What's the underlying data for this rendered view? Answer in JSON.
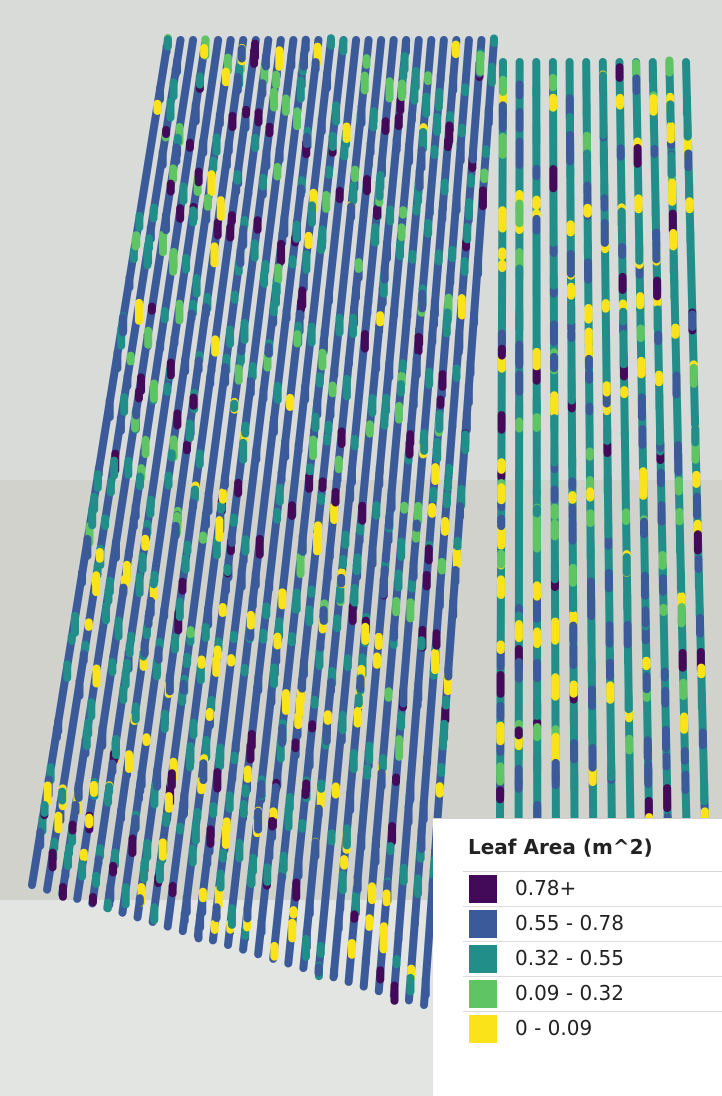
{
  "legend": {
    "title": "Leaf Area (m^2)",
    "classes": [
      {
        "label": "0.78+",
        "color": "#440a5a"
      },
      {
        "label": "0.55 - 0.78",
        "color": "#3a5a9a"
      },
      {
        "label": "0.32 - 0.55",
        "color": "#218e8a"
      },
      {
        "label": "0.09 - 0.32",
        "color": "#5fc463"
      },
      {
        "label": "0 - 0.09",
        "color": "#fbe31a"
      }
    ]
  }
}
